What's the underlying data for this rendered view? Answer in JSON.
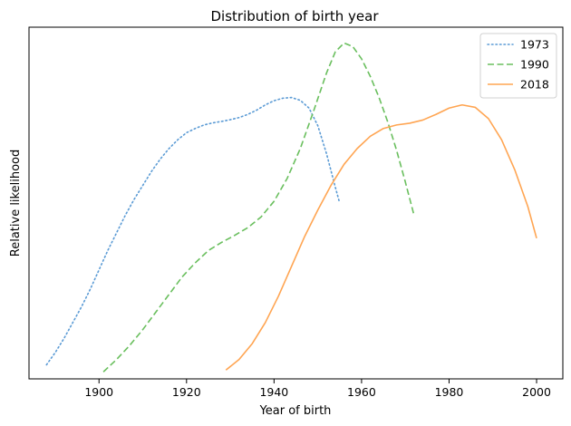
{
  "chart_data": {
    "type": "line",
    "title": "Distribution of birth year",
    "xlabel": "Year of birth",
    "ylabel": "Relative likelihood",
    "xlim": [
      1884,
      2006
    ],
    "ylim": [
      0.0,
      1.0
    ],
    "xticks": [
      1900,
      1920,
      1940,
      1960,
      1980,
      2000
    ],
    "yticks_shown": false,
    "grid": false,
    "legend_position": "top-right",
    "series": [
      {
        "name": "1973",
        "color": "#5b9bd5",
        "style": "dotted",
        "points": [
          [
            1888,
            0.04
          ],
          [
            1890,
            0.075
          ],
          [
            1892,
            0.115
          ],
          [
            1894,
            0.16
          ],
          [
            1896,
            0.205
          ],
          [
            1898,
            0.255
          ],
          [
            1900,
            0.31
          ],
          [
            1902,
            0.365
          ],
          [
            1904,
            0.415
          ],
          [
            1906,
            0.465
          ],
          [
            1908,
            0.51
          ],
          [
            1910,
            0.55
          ],
          [
            1912,
            0.59
          ],
          [
            1914,
            0.625
          ],
          [
            1916,
            0.655
          ],
          [
            1918,
            0.68
          ],
          [
            1920,
            0.7
          ],
          [
            1922,
            0.712
          ],
          [
            1924,
            0.722
          ],
          [
            1926,
            0.728
          ],
          [
            1928,
            0.732
          ],
          [
            1930,
            0.737
          ],
          [
            1932,
            0.743
          ],
          [
            1934,
            0.752
          ],
          [
            1936,
            0.764
          ],
          [
            1938,
            0.779
          ],
          [
            1940,
            0.791
          ],
          [
            1942,
            0.798
          ],
          [
            1944,
            0.8
          ],
          [
            1946,
            0.792
          ],
          [
            1948,
            0.77
          ],
          [
            1950,
            0.72
          ],
          [
            1952,
            0.64
          ],
          [
            1954,
            0.545
          ],
          [
            1955,
            0.5
          ]
        ]
      },
      {
        "name": "1990",
        "color": "#6abf5e",
        "style": "dashed",
        "points": [
          [
            1901,
            0.02
          ],
          [
            1904,
            0.055
          ],
          [
            1907,
            0.095
          ],
          [
            1910,
            0.14
          ],
          [
            1913,
            0.19
          ],
          [
            1916,
            0.24
          ],
          [
            1919,
            0.29
          ],
          [
            1922,
            0.33
          ],
          [
            1925,
            0.365
          ],
          [
            1928,
            0.388
          ],
          [
            1931,
            0.408
          ],
          [
            1934,
            0.43
          ],
          [
            1937,
            0.46
          ],
          [
            1940,
            0.505
          ],
          [
            1943,
            0.57
          ],
          [
            1946,
            0.655
          ],
          [
            1949,
            0.76
          ],
          [
            1952,
            0.87
          ],
          [
            1954,
            0.93
          ],
          [
            1956,
            0.955
          ],
          [
            1958,
            0.945
          ],
          [
            1960,
            0.91
          ],
          [
            1962,
            0.86
          ],
          [
            1964,
            0.8
          ],
          [
            1966,
            0.73
          ],
          [
            1968,
            0.65
          ],
          [
            1970,
            0.56
          ],
          [
            1972,
            0.465
          ]
        ]
      },
      {
        "name": "2018",
        "color": "#ffa552",
        "style": "solid",
        "points": [
          [
            1929,
            0.025
          ],
          [
            1932,
            0.055
          ],
          [
            1935,
            0.1
          ],
          [
            1938,
            0.16
          ],
          [
            1941,
            0.235
          ],
          [
            1944,
            0.32
          ],
          [
            1947,
            0.405
          ],
          [
            1950,
            0.48
          ],
          [
            1953,
            0.55
          ],
          [
            1956,
            0.61
          ],
          [
            1959,
            0.655
          ],
          [
            1962,
            0.69
          ],
          [
            1965,
            0.712
          ],
          [
            1968,
            0.722
          ],
          [
            1971,
            0.727
          ],
          [
            1974,
            0.736
          ],
          [
            1977,
            0.752
          ],
          [
            1980,
            0.77
          ],
          [
            1983,
            0.779
          ],
          [
            1986,
            0.772
          ],
          [
            1989,
            0.74
          ],
          [
            1992,
            0.68
          ],
          [
            1995,
            0.595
          ],
          [
            1998,
            0.49
          ],
          [
            2000,
            0.4
          ]
        ]
      }
    ]
  }
}
